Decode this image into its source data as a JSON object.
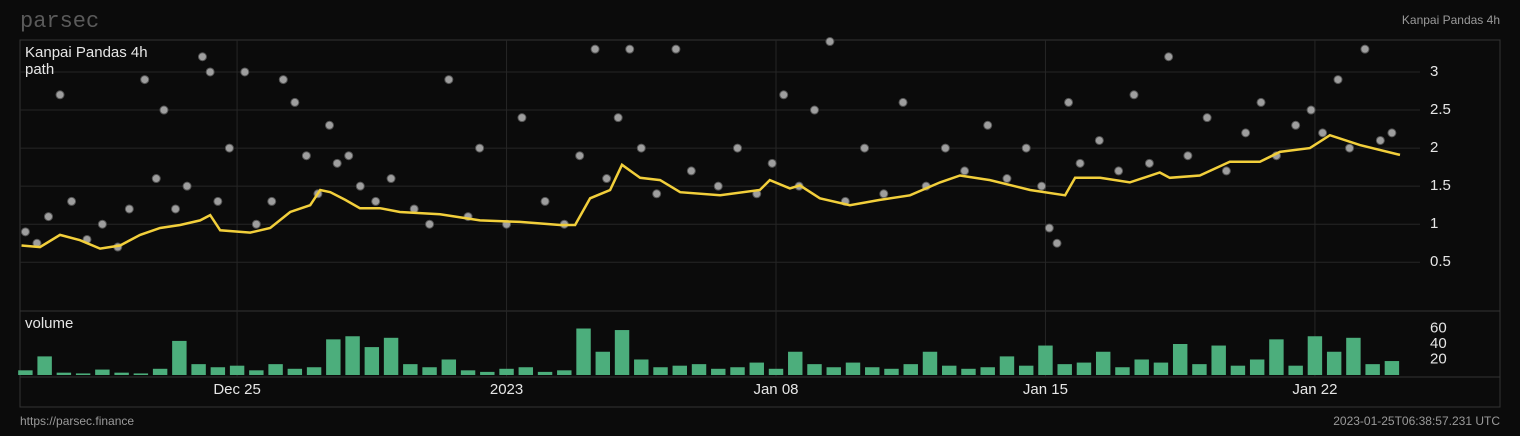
{
  "header": {
    "brand": "parsec",
    "name": "Kanpai Pandas 4h"
  },
  "chart_data": [
    {
      "type": "scatter",
      "xlim": [
        -5.64,
        30.73
      ],
      "ylim": [
        -0.14,
        3.42
      ],
      "yticks": [
        0.5,
        1,
        1.5,
        2,
        2.5,
        3
      ],
      "grid": true,
      "series": [
        {
          "name": "Kanpai Pandas 4h",
          "type": "scatter",
          "color": "#b8b8b8",
          "x": [
            -5.5,
            -5.2,
            -4.9,
            -4.6,
            -4.3,
            -3.9,
            -3.5,
            -3.1,
            -2.8,
            -2.4,
            -2.1,
            -1.9,
            -1.6,
            -1.3,
            -0.9,
            -0.7,
            -0.5,
            -0.2,
            0.2,
            0.5,
            0.9,
            1.2,
            1.5,
            1.8,
            2.1,
            2.4,
            2.6,
            2.9,
            3.2,
            3.6,
            4.0,
            4.6,
            5.0,
            5.5,
            6.0,
            6.3,
            7.0,
            7.4,
            8.0,
            8.5,
            8.9,
            9.3,
            9.6,
            9.9,
            10.2,
            10.5,
            10.9,
            11.4,
            11.8,
            12.5,
            13.0,
            13.5,
            13.9,
            14.2,
            14.6,
            15.0,
            15.4,
            15.8,
            16.3,
            16.8,
            17.3,
            17.9,
            18.4,
            18.9,
            19.5,
            20.0,
            20.5,
            20.9,
            21.1,
            21.3,
            21.6,
            21.9,
            22.4,
            22.9,
            23.3,
            23.7,
            24.2,
            24.7,
            25.2,
            25.7,
            26.2,
            26.6,
            27.0,
            27.5,
            27.9,
            28.2,
            28.6,
            28.9,
            29.3,
            29.7,
            30.0
          ],
          "values": [
            0.9,
            0.75,
            1.1,
            2.7,
            1.3,
            0.8,
            1.0,
            0.7,
            1.2,
            2.9,
            1.6,
            2.5,
            1.2,
            1.5,
            3.2,
            3.0,
            1.3,
            2.0,
            3.0,
            1.0,
            1.3,
            2.9,
            2.6,
            1.9,
            1.4,
            2.3,
            1.8,
            1.9,
            1.5,
            1.3,
            1.6,
            1.2,
            1.0,
            2.9,
            1.1,
            2.0,
            1.0,
            2.4,
            1.3,
            1.0,
            1.9,
            3.3,
            1.6,
            2.4,
            3.3,
            2.0,
            1.4,
            3.3,
            1.7,
            1.5,
            2.0,
            1.4,
            1.8,
            2.7,
            1.5,
            2.5,
            3.4,
            1.3,
            2.0,
            1.4,
            2.6,
            1.5,
            2.0,
            1.7,
            2.3,
            1.6,
            2.0,
            1.5,
            0.95,
            0.75,
            2.6,
            1.8,
            2.1,
            1.7,
            2.7,
            1.8,
            3.2,
            1.9,
            2.4,
            1.7,
            2.2,
            2.6,
            1.9,
            2.3,
            2.5,
            2.2,
            2.9,
            2.0,
            3.3,
            2.1,
            2.2
          ]
        },
        {
          "name": "path",
          "type": "line",
          "color": "#f2cf3b",
          "x": [
            -5.6,
            -5.12,
            -4.6,
            -4.08,
            -3.56,
            -3.04,
            -2.52,
            -2.0,
            -1.48,
            -0.96,
            -0.7,
            -0.44,
            0.34,
            0.86,
            1.38,
            1.9,
            2.16,
            2.42,
            2.81,
            3.19,
            3.71,
            4.23,
            5.27,
            6.31,
            7.35,
            8.39,
            8.78,
            9.17,
            9.69,
            10.0,
            10.47,
            10.99,
            11.51,
            12.55,
            13.58,
            13.84,
            14.36,
            14.62,
            15.14,
            15.92,
            16.7,
            17.48,
            18.26,
            18.78,
            19.56,
            20.6,
            21.51,
            21.77,
            22.42,
            23.19,
            23.97,
            24.23,
            25.01,
            25.79,
            26.57,
            27.09,
            27.87,
            28.39,
            29.17,
            30.21
          ],
          "values": [
            0.72,
            0.7,
            0.86,
            0.79,
            0.68,
            0.72,
            0.86,
            0.95,
            0.99,
            1.05,
            1.12,
            0.92,
            0.89,
            0.95,
            1.16,
            1.25,
            1.45,
            1.42,
            1.32,
            1.21,
            1.21,
            1.16,
            1.13,
            1.05,
            1.03,
            0.99,
            0.99,
            1.34,
            1.45,
            1.78,
            1.61,
            1.58,
            1.42,
            1.38,
            1.45,
            1.58,
            1.47,
            1.51,
            1.34,
            1.25,
            1.32,
            1.38,
            1.55,
            1.64,
            1.58,
            1.45,
            1.38,
            1.61,
            1.61,
            1.55,
            1.68,
            1.61,
            1.64,
            1.82,
            1.82,
            1.95,
            2.0,
            2.17,
            2.04,
            1.91
          ]
        }
      ]
    },
    {
      "type": "bar",
      "title": "volume",
      "color": "#4cae7c",
      "xlim": [
        -5.64,
        30.73
      ],
      "xticks": [
        {
          "value": 0,
          "label": "Dec 25"
        },
        {
          "value": 7,
          "label": "2023"
        },
        {
          "value": 14,
          "label": "Jan 08"
        },
        {
          "value": 21,
          "label": "Jan 15"
        },
        {
          "value": 28,
          "label": "Jan 22"
        }
      ],
      "ylim": [
        -2.6,
        82.6
      ],
      "yticks": [
        20,
        40,
        60
      ],
      "x": [
        -5.5,
        -5,
        -4.5,
        -4,
        -3.5,
        -3,
        -2.5,
        -2,
        -1.5,
        -1,
        -0.5,
        0,
        0.5,
        1,
        1.5,
        2,
        2.5,
        3,
        3.5,
        4,
        4.5,
        5,
        5.5,
        6,
        6.5,
        7,
        7.5,
        8,
        8.5,
        9,
        9.5,
        10,
        10.5,
        11,
        11.5,
        12,
        12.5,
        13,
        13.5,
        14,
        14.5,
        15,
        15.5,
        16,
        16.5,
        17,
        17.5,
        18,
        18.5,
        19,
        19.5,
        20,
        20.5,
        21,
        21.5,
        22,
        22.5,
        23,
        23.5,
        24,
        24.5,
        25,
        25.5,
        26,
        26.5,
        27,
        27.5,
        28,
        28.5,
        29,
        29.5,
        30
      ],
      "values": [
        6,
        24,
        3,
        2,
        7,
        3,
        2,
        8,
        44,
        14,
        10,
        12,
        6,
        14,
        8,
        10,
        46,
        50,
        36,
        48,
        14,
        10,
        20,
        6,
        4,
        8,
        10,
        4,
        6,
        60,
        30,
        58,
        20,
        10,
        12,
        14,
        8,
        10,
        16,
        8,
        30,
        14,
        10,
        16,
        10,
        8,
        14,
        30,
        12,
        8,
        10,
        24,
        12,
        38,
        14,
        16,
        30,
        10,
        20,
        16,
        40,
        14,
        38,
        12,
        20,
        46,
        12,
        50,
        30,
        48,
        14,
        18
      ]
    }
  ],
  "footer": {
    "url": "https://parsec.finance",
    "timestamp": "2023-01-25T06:38:57.231 UTC"
  }
}
